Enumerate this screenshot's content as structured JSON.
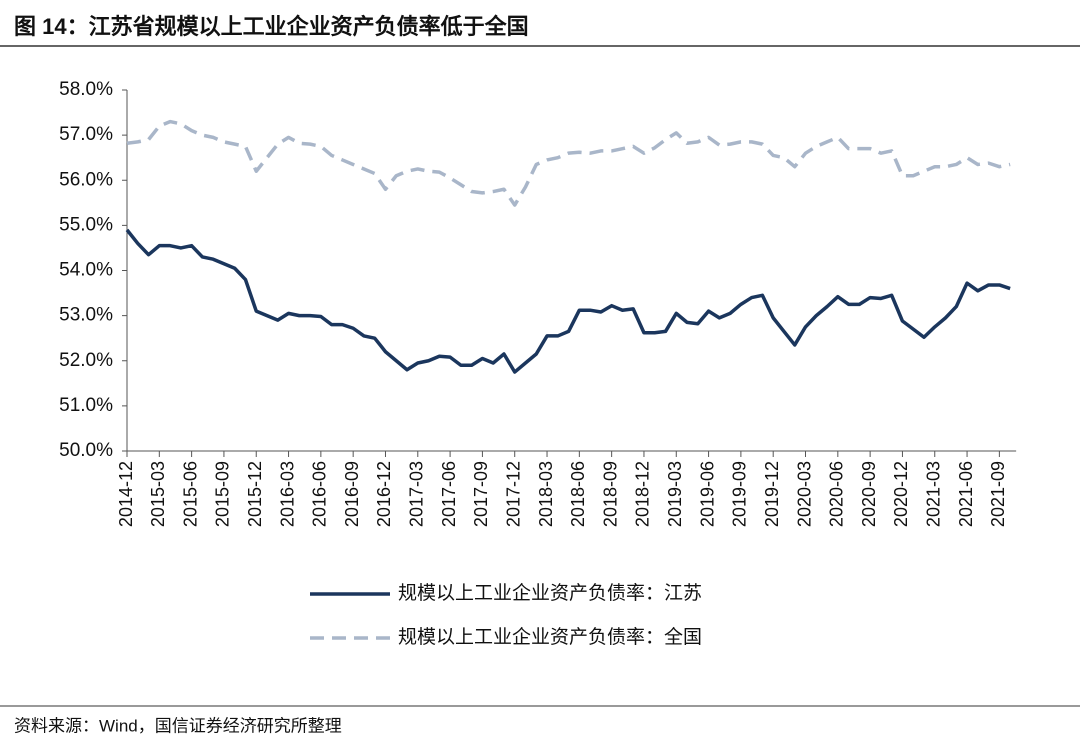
{
  "chart_data": {
    "type": "line",
    "title": "图 14：江苏省规模以上工业企业资产负债率低于全国",
    "source": "资料来源：Wind，国信证券经济研究所整理",
    "categories": [
      "2014-12",
      null,
      null,
      "2015-03",
      null,
      null,
      "2015-06",
      null,
      null,
      "2015-09",
      null,
      null,
      "2015-12",
      null,
      null,
      "2016-03",
      null,
      null,
      "2016-06",
      null,
      null,
      "2016-09",
      null,
      null,
      "2016-12",
      null,
      null,
      "2017-03",
      null,
      null,
      "2017-06",
      null,
      null,
      "2017-09",
      null,
      null,
      "2017-12",
      null,
      null,
      "2018-03",
      null,
      null,
      "2018-06",
      null,
      null,
      "2018-09",
      null,
      null,
      "2018-12",
      null,
      null,
      "2019-03",
      null,
      null,
      "2019-06",
      null,
      null,
      "2019-09",
      null,
      null,
      "2019-12",
      null,
      null,
      "2020-03",
      null,
      null,
      "2020-06",
      null,
      null,
      "2020-09",
      null,
      null,
      "2020-12",
      null,
      null,
      "2021-03",
      null,
      null,
      "2021-06",
      null,
      null,
      "2021-09",
      null
    ],
    "series": [
      {
        "name": "规模以上工业企业资产负债率：江苏",
        "color": "#1b365d",
        "dash": false,
        "values": [
          54.9,
          54.6,
          54.35,
          54.55,
          54.55,
          54.5,
          54.55,
          54.3,
          54.25,
          54.15,
          54.05,
          53.8,
          53.1,
          53.0,
          52.9,
          53.05,
          53.0,
          53.0,
          52.98,
          52.8,
          52.8,
          52.72,
          52.55,
          52.5,
          52.2,
          52.0,
          51.8,
          51.95,
          52.0,
          52.1,
          52.08,
          51.9,
          51.9,
          52.05,
          51.95,
          52.15,
          51.75,
          51.95,
          52.15,
          52.55,
          52.55,
          52.65,
          53.12,
          53.12,
          53.08,
          53.22,
          53.12,
          53.15,
          52.62,
          52.62,
          52.65,
          53.05,
          52.85,
          52.82,
          53.1,
          52.95,
          53.05,
          53.25,
          53.4,
          53.45,
          52.95,
          52.65,
          52.35,
          52.75,
          53.0,
          53.2,
          53.42,
          53.25,
          53.25,
          53.4,
          53.38,
          53.45,
          52.88,
          52.7,
          52.52,
          52.75,
          52.95,
          53.2,
          53.72,
          53.55,
          53.68,
          53.68,
          53.6
        ]
      },
      {
        "name": "规模以上工业企业资产负债率：全国",
        "color": "#a9b6c9",
        "dash": true,
        "values": [
          56.82,
          56.85,
          56.9,
          57.2,
          57.3,
          57.25,
          57.1,
          57.0,
          56.95,
          56.85,
          56.8,
          56.75,
          56.2,
          56.5,
          56.8,
          56.95,
          56.82,
          56.8,
          56.75,
          56.55,
          56.45,
          56.35,
          56.25,
          56.15,
          55.8,
          56.1,
          56.2,
          56.25,
          56.2,
          56.18,
          56.05,
          55.9,
          55.75,
          55.72,
          55.75,
          55.8,
          55.45,
          55.85,
          56.35,
          56.45,
          56.5,
          56.6,
          56.62,
          56.6,
          56.65,
          56.65,
          56.7,
          56.75,
          56.6,
          56.72,
          56.9,
          57.05,
          56.82,
          56.85,
          56.95,
          56.78,
          56.8,
          56.85,
          56.85,
          56.8,
          56.55,
          56.5,
          56.3,
          56.6,
          56.75,
          56.85,
          56.95,
          56.7,
          56.7,
          56.7,
          56.6,
          56.65,
          56.1,
          56.1,
          56.2,
          56.3,
          56.3,
          56.35,
          56.5,
          56.35,
          56.38,
          56.3,
          56.35
        ]
      }
    ],
    "ylim": [
      50,
      58
    ],
    "yticks": [
      {
        "value": 50,
        "label": "50.0%"
      },
      {
        "value": 51,
        "label": "51.0%"
      },
      {
        "value": 52,
        "label": "52.0%"
      },
      {
        "value": 53,
        "label": "53.0%"
      },
      {
        "value": 54,
        "label": "54.0%"
      },
      {
        "value": 55,
        "label": "55.0%"
      },
      {
        "value": 56,
        "label": "56.0%"
      },
      {
        "value": 57,
        "label": "57.0%"
      },
      {
        "value": 58,
        "label": "58.0%"
      }
    ],
    "grid": false
  }
}
